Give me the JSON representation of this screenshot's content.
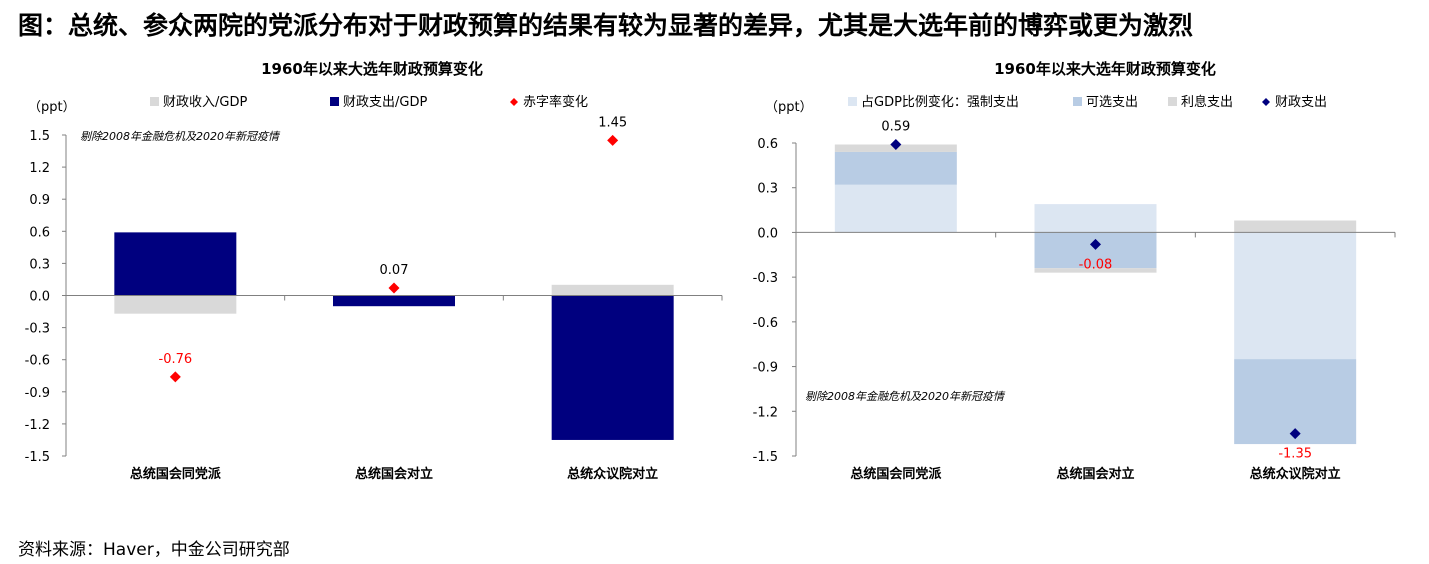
{
  "figure": {
    "title": "图：总统、参众两院的党派分布对于财政预算的结果有较为显著的差异，尤其是大选年前的博弈或更为激烈",
    "source": "资料来源：Haver，中金公司研究部"
  },
  "chart_data": [
    {
      "type": "bar",
      "title": "1960年以来大选年财政预算变化",
      "ylabel": "（ppt）",
      "ylim": [
        -1.5,
        1.5
      ],
      "yticks": [
        "1.5",
        "1.2",
        "0.9",
        "0.6",
        "0.3",
        "0.0",
        "-0.3",
        "-0.6",
        "-0.9",
        "-1.2",
        "-1.5"
      ],
      "categories": [
        "总统国会同党派",
        "总统国会对立",
        "总统众议院对立"
      ],
      "note": "剔除2008年金融危机及2020年新冠疫情",
      "legend_position": "top",
      "series": [
        {
          "name": "财政收入/GDP",
          "kind": "bar",
          "color": "#d9d9d9",
          "values": [
            -0.17,
            -0.03,
            0.1
          ]
        },
        {
          "name": "财政支出/GDP",
          "kind": "bar",
          "color": "#00007f",
          "values": [
            0.59,
            -0.1,
            -1.35
          ]
        },
        {
          "name": "赤字率变化",
          "kind": "marker",
          "color": "#ff0000",
          "values": [
            -0.76,
            0.07,
            1.45
          ],
          "labels": [
            "-0.76",
            "0.07",
            "1.45"
          ],
          "label_color": [
            "#ff0000",
            "#000000",
            "#000000"
          ]
        }
      ]
    },
    {
      "type": "bar",
      "title": "1960年以来大选年财政预算变化",
      "ylabel": "（ppt）",
      "ylim": [
        -1.5,
        0.75
      ],
      "yticks": [
        "0.6",
        "0.3",
        "0.0",
        "-0.3",
        "-0.6",
        "-0.9",
        "-1.2",
        "-1.5"
      ],
      "categories": [
        "总统国会同党派",
        "总统国会对立",
        "总统众议院对立"
      ],
      "note": "剔除2008年金融危机及2020年新冠疫情",
      "legend_position": "top",
      "series": [
        {
          "name": "占GDP比例变化：强制支出",
          "kind": "stack",
          "color": "#dce6f2",
          "values": [
            0.32,
            0.19,
            -0.85
          ]
        },
        {
          "name": "可选支出",
          "kind": "stack",
          "color": "#b8cce4",
          "values": [
            0.22,
            -0.24,
            -0.57
          ]
        },
        {
          "name": "利息支出",
          "kind": "stack",
          "color": "#d9d9d9",
          "values": [
            0.05,
            -0.03,
            0.08
          ]
        },
        {
          "name": "财政支出",
          "kind": "marker",
          "color": "#00007f",
          "values": [
            0.59,
            -0.08,
            -1.35
          ],
          "labels": [
            "0.59",
            "-0.08",
            "-1.35"
          ],
          "label_color": [
            "#000000",
            "#ff0000",
            "#ff0000"
          ]
        }
      ]
    }
  ]
}
